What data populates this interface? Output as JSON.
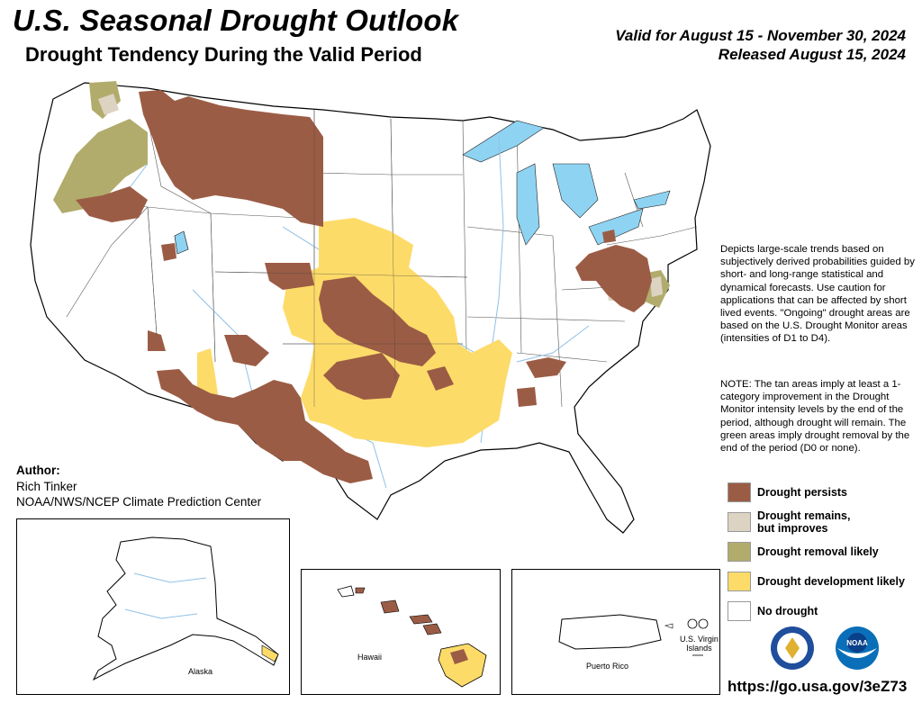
{
  "header": {
    "title": "U.S. Seasonal Drought Outlook",
    "subtitle": "Drought Tendency During the Valid Period",
    "valid": "Valid for August 15 - November 30, 2024",
    "released": "Released August 15, 2024"
  },
  "colors": {
    "persists": "#9b5c45",
    "improves": "#ddd3c3",
    "removal": "#b1ac6c",
    "development": "#fddb69",
    "none": "#ffffff",
    "water": "#8fd3f2",
    "river": "#8fc0e6",
    "border": "#000000",
    "state_line": "#333333"
  },
  "description": "Depicts large-scale trends based on subjectively derived probabilities guided by short- and long-range statistical and dynamical forecasts. Use caution for applications that can be affected by short lived events. \"Ongoing\" drought areas are based on the U.S. Drought Monitor areas (intensities of D1 to D4).",
  "note": "NOTE: The tan areas imply at least a 1-category improvement in the Drought Monitor intensity levels by the end of the period, although drought will remain. The green areas imply drought removal by the end of the period (D0 or none).",
  "legend": [
    {
      "key": "persists",
      "line1": "Drought persists",
      "line2": ""
    },
    {
      "key": "improves",
      "line1": "Drought remains,",
      "line2": "but improves"
    },
    {
      "key": "removal",
      "line1": "Drought removal likely",
      "line2": ""
    },
    {
      "key": "development",
      "line1": "Drought development likely",
      "line2": ""
    },
    {
      "key": "none",
      "line1": "No drought",
      "line2": ""
    }
  ],
  "author": {
    "label": "Author:",
    "name": "Rich Tinker",
    "org": "NOAA/NWS/NCEP Climate Prediction Center"
  },
  "insets": {
    "alaska": "Alaska",
    "hawaii": "Hawaii",
    "puerto_rico": "Puerto Rico",
    "usvi_line1": "U.S. Virgin",
    "usvi_line2": "Islands"
  },
  "logos": {
    "doc": "doc-seal-icon",
    "noaa": "noaa-logo-icon",
    "noaa_text": "NOAA"
  },
  "url": "https://go.usa.gov/3eZ73"
}
